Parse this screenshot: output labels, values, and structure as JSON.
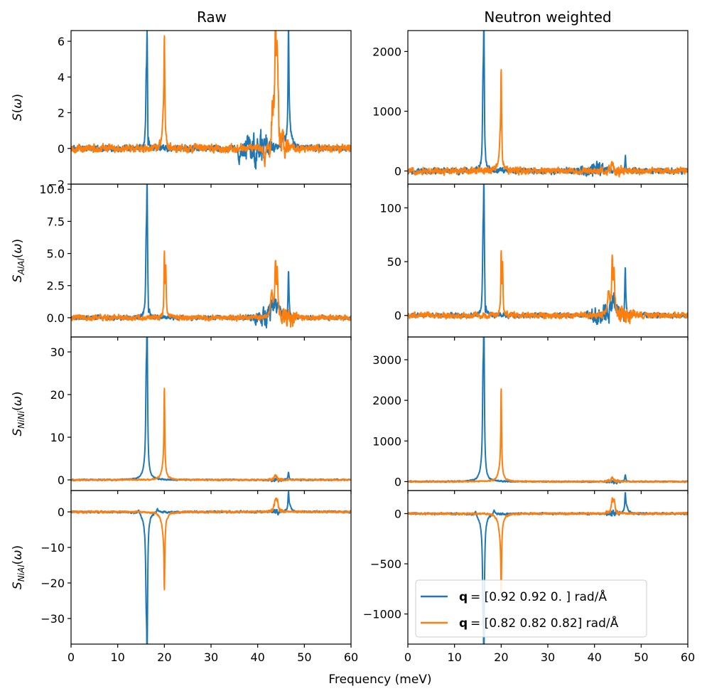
{
  "figure": {
    "xlabel": "Frequency (meV)",
    "columns": [
      "Raw",
      "Neutron weighted"
    ],
    "legend": [
      {
        "label": "= [0.92 0.92 0.  ] rad/Å",
        "prefix": "q",
        "color": "#1f77b4"
      },
      {
        "label": "= [0.82 0.82 0.82] rad/Å",
        "prefix": "q",
        "color": "#ff7f0e"
      }
    ]
  },
  "chart_data": [
    {
      "type": "line",
      "panel": "raw-S",
      "ylabel": "S(ω)",
      "xlim": [
        0,
        60
      ],
      "ylim": [
        -2.0,
        6.6
      ],
      "xticks": [
        0,
        10,
        20,
        30,
        40,
        50,
        60
      ],
      "yticks": [
        -2,
        0,
        2,
        4,
        6
      ],
      "ytick_labels": [
        "−2",
        "0",
        "2",
        "4",
        "6"
      ],
      "noise": [
        0.12,
        0.16
      ],
      "bump": [
        [
          36,
          44,
          0.6
        ],
        [
          42,
          47,
          0.5
        ]
      ],
      "series": [
        {
          "name": "q = [0.92 0.92 0.  ] rad/Å",
          "color": "#1f77b4",
          "peaks": [
            [
              16.3,
              6.2,
              0.12
            ],
            [
              16.5,
              -1.6,
              0.06
            ],
            [
              16.1,
              2.7,
              0.1
            ],
            [
              46.6,
              6.1,
              0.12
            ],
            [
              46.9,
              0.8,
              0.5
            ],
            [
              36.0,
              -0.9,
              0.15
            ],
            [
              45.5,
              0.6,
              0.3
            ]
          ]
        },
        {
          "name": "q = [0.82 0.82 0.82] rad/Å",
          "color": "#ff7f0e",
          "peaks": [
            [
              20.0,
              5.4,
              0.1
            ],
            [
              19.8,
              1.5,
              0.3
            ],
            [
              43.8,
              6.2,
              0.15
            ],
            [
              44.2,
              4.9,
              0.2
            ],
            [
              43.2,
              2.0,
              0.3
            ],
            [
              41.5,
              -1.2,
              0.15
            ],
            [
              42.6,
              -1.1,
              0.15
            ]
          ]
        }
      ]
    },
    {
      "type": "line",
      "panel": "nw-S",
      "ylabel": "",
      "xlim": [
        0,
        60
      ],
      "ylim": [
        -220,
        2350
      ],
      "xticks": [
        0,
        10,
        20,
        30,
        40,
        50,
        60
      ],
      "yticks": [
        0,
        1000,
        2000
      ],
      "ytick_labels": [
        "0",
        "1000",
        "2000"
      ],
      "noise": [
        35,
        40
      ],
      "bump": [
        [
          36,
          44,
          60
        ],
        [
          42,
          47,
          40
        ]
      ],
      "series": [
        {
          "name": "q = [0.92 0.92 0.  ] rad/Å",
          "color": "#1f77b4",
          "peaks": [
            [
              16.3,
              2230,
              0.12
            ],
            [
              16.1,
              1080,
              0.12
            ],
            [
              16.5,
              -120,
              0.06
            ],
            [
              46.6,
              280,
              0.12
            ]
          ]
        },
        {
          "name": "q = [0.82 0.82 0.82] rad/Å",
          "color": "#ff7f0e",
          "peaks": [
            [
              20.0,
              1460,
              0.1
            ],
            [
              19.8,
              400,
              0.3
            ],
            [
              43.8,
              190,
              0.3
            ]
          ]
        }
      ]
    },
    {
      "type": "line",
      "panel": "raw-AlAl",
      "ylabel": "S_AlAl(ω)",
      "xlim": [
        0,
        60
      ],
      "ylim": [
        -1.5,
        10.4
      ],
      "xticks": [
        0,
        10,
        20,
        30,
        40,
        50,
        60
      ],
      "yticks": [
        0,
        2.5,
        5,
        7.5,
        10
      ],
      "ytick_labels": [
        "0.0",
        "2.5",
        "5.0",
        "7.5",
        "10.0"
      ],
      "noise": [
        0.12,
        0.16
      ],
      "bump": [
        [
          38,
          46,
          0.5
        ],
        [
          44,
          49,
          0.4
        ]
      ],
      "series": [
        {
          "name": "q = [0.92 0.92 0.  ] rad/Å",
          "color": "#1f77b4",
          "peaks": [
            [
              16.3,
              9.6,
              0.12
            ],
            [
              16.1,
              4.4,
              0.12
            ],
            [
              16.6,
              -1.2,
              0.06
            ],
            [
              46.6,
              3.7,
              0.12
            ],
            [
              46.3,
              -1.2,
              0.06
            ],
            [
              44.0,
              1.0,
              0.8
            ]
          ]
        },
        {
          "name": "q = [0.82 0.82 0.82] rad/Å",
          "color": "#ff7f0e",
          "peaks": [
            [
              20.0,
              4.8,
              0.1
            ],
            [
              20.3,
              3.9,
              0.1
            ],
            [
              43.8,
              4.0,
              0.15
            ],
            [
              44.2,
              3.3,
              0.15
            ],
            [
              43.0,
              1.8,
              0.3
            ]
          ]
        }
      ]
    },
    {
      "type": "line",
      "panel": "nw-AlAl",
      "ylabel": "",
      "xlim": [
        0,
        60
      ],
      "ylim": [
        -20,
        122
      ],
      "xticks": [
        0,
        10,
        20,
        30,
        40,
        50,
        60
      ],
      "yticks": [
        0,
        50,
        100
      ],
      "ytick_labels": [
        "0",
        "50",
        "100"
      ],
      "noise": [
        1.6,
        2.0
      ],
      "bump": [
        [
          38,
          46,
          6
        ],
        [
          44,
          49,
          4
        ]
      ],
      "series": [
        {
          "name": "q = [0.92 0.92 0.  ] rad/Å",
          "color": "#1f77b4",
          "peaks": [
            [
              16.3,
              115,
              0.12
            ],
            [
              16.1,
              52,
              0.12
            ],
            [
              16.6,
              -15,
              0.06
            ],
            [
              46.6,
              43,
              0.12
            ],
            [
              46.3,
              -14,
              0.06
            ],
            [
              44.0,
              11,
              0.8
            ]
          ]
        },
        {
          "name": "q = [0.82 0.82 0.82] rad/Å",
          "color": "#ff7f0e",
          "peaks": [
            [
              20.0,
              56,
              0.1
            ],
            [
              20.3,
              45,
              0.1
            ],
            [
              43.8,
              47,
              0.15
            ],
            [
              44.2,
              40,
              0.15
            ],
            [
              43.0,
              20,
              0.3
            ]
          ]
        }
      ]
    },
    {
      "type": "line",
      "panel": "raw-NiNi",
      "ylabel": "S_NiNi(ω)",
      "xlim": [
        0,
        60
      ],
      "ylim": [
        -2.5,
        33.5
      ],
      "xticks": [
        0,
        10,
        20,
        30,
        40,
        50,
        60
      ],
      "yticks": [
        0,
        10,
        20,
        30
      ],
      "ytick_labels": [
        "0",
        "10",
        "20",
        "30"
      ],
      "noise": [
        0.12,
        0.12
      ],
      "bump": [
        [
          42,
          46,
          0.3
        ],
        [
          42,
          46,
          0.2
        ]
      ],
      "series": [
        {
          "name": "q = [0.92 0.92 0.  ] rad/Å",
          "color": "#1f77b4",
          "peaks": [
            [
              16.3,
              31.6,
              0.12
            ],
            [
              16.1,
              15.5,
              0.12
            ],
            [
              16.0,
              3.0,
              0.6
            ],
            [
              46.6,
              1.6,
              0.12
            ]
          ]
        },
        {
          "name": "q = [0.82 0.82 0.82] rad/Å",
          "color": "#ff7f0e",
          "peaks": [
            [
              20.0,
              19.3,
              0.1
            ],
            [
              19.8,
              3.0,
              0.5
            ],
            [
              43.8,
              1.0,
              0.3
            ]
          ]
        }
      ]
    },
    {
      "type": "line",
      "panel": "nw-NiNi",
      "ylabel": "",
      "xlim": [
        0,
        60
      ],
      "ylim": [
        -220,
        3560
      ],
      "xticks": [
        0,
        10,
        20,
        30,
        40,
        50,
        60
      ],
      "yticks": [
        0,
        1000,
        2000,
        3000
      ],
      "ytick_labels": [
        "0",
        "1000",
        "2000",
        "3000"
      ],
      "noise": [
        12,
        12
      ],
      "bump": [
        [
          42,
          46,
          30
        ],
        [
          42,
          46,
          20
        ]
      ],
      "series": [
        {
          "name": "q = [0.92 0.92 0.  ] rad/Å",
          "color": "#1f77b4",
          "peaks": [
            [
              16.3,
              3350,
              0.12
            ],
            [
              16.1,
              1650,
              0.12
            ],
            [
              16.0,
              320,
              0.6
            ],
            [
              46.6,
              170,
              0.12
            ]
          ]
        },
        {
          "name": "q = [0.82 0.82 0.82] rad/Å",
          "color": "#ff7f0e",
          "peaks": [
            [
              20.0,
              2050,
              0.1
            ],
            [
              19.8,
              320,
              0.5
            ],
            [
              43.8,
              100,
              0.3
            ]
          ]
        }
      ]
    },
    {
      "type": "line",
      "panel": "raw-NiAl",
      "ylabel": "S_NiAl(ω)",
      "xlim": [
        0,
        60
      ],
      "ylim": [
        -37.2,
        6.0
      ],
      "xticks": [
        0,
        10,
        20,
        30,
        40,
        50,
        60
      ],
      "yticks": [
        -30,
        -20,
        -10,
        0
      ],
      "ytick_labels": [
        "−30",
        "−20",
        "−10",
        "0"
      ],
      "noise": [
        0.2,
        0.2
      ],
      "bump": [
        [
          42,
          46,
          0.4
        ],
        [
          42,
          46,
          0.3
        ]
      ],
      "series": [
        {
          "name": "q = [0.92 0.92 0.  ] rad/Å",
          "color": "#1f77b4",
          "peaks": [
            [
              16.3,
              -35.2,
              0.12
            ],
            [
              16.1,
              -15.0,
              0.12
            ],
            [
              16.0,
              -3.5,
              0.6
            ],
            [
              46.6,
              4.8,
              0.12
            ],
            [
              46.9,
              1.5,
              0.4
            ],
            [
              14.5,
              1.2,
              0.2
            ],
            [
              18.5,
              1.2,
              0.2
            ]
          ]
        },
        {
          "name": "q = [0.82 0.82 0.82] rad/Å",
          "color": "#ff7f0e",
          "peaks": [
            [
              20.0,
              -18.0,
              0.1
            ],
            [
              19.8,
              -5.0,
              0.5
            ],
            [
              43.8,
              3.2,
              0.3
            ],
            [
              44.2,
              2.5,
              0.2
            ]
          ]
        }
      ]
    },
    {
      "type": "line",
      "panel": "nw-NiAl",
      "ylabel": "",
      "xlim": [
        0,
        60
      ],
      "ylim": [
        -1300,
        230
      ],
      "xticks": [
        0,
        10,
        20,
        30,
        40,
        50,
        60
      ],
      "yticks": [
        -1000,
        -500,
        0
      ],
      "ytick_labels": [
        "−1000",
        "−500",
        "0"
      ],
      "noise": [
        7,
        7
      ],
      "bump": [
        [
          42,
          46,
          15
        ],
        [
          42,
          46,
          10
        ]
      ],
      "series": [
        {
          "name": "q = [0.92 0.92 0.  ] rad/Å",
          "color": "#1f77b4",
          "peaks": [
            [
              16.3,
              -1280,
              0.12
            ],
            [
              16.1,
              -550,
              0.12
            ],
            [
              16.0,
              -120,
              0.6
            ],
            [
              46.6,
              170,
              0.12
            ],
            [
              46.9,
              60,
              0.4
            ],
            [
              14.5,
              45,
              0.2
            ],
            [
              18.5,
              45,
              0.2
            ]
          ]
        },
        {
          "name": "q = [0.82 0.82 0.82] rad/Å",
          "color": "#ff7f0e",
          "peaks": [
            [
              20.0,
              -650,
              0.1
            ],
            [
              19.8,
              -180,
              0.5
            ],
            [
              43.8,
              120,
              0.3
            ],
            [
              44.2,
              90,
              0.2
            ]
          ]
        }
      ]
    }
  ]
}
